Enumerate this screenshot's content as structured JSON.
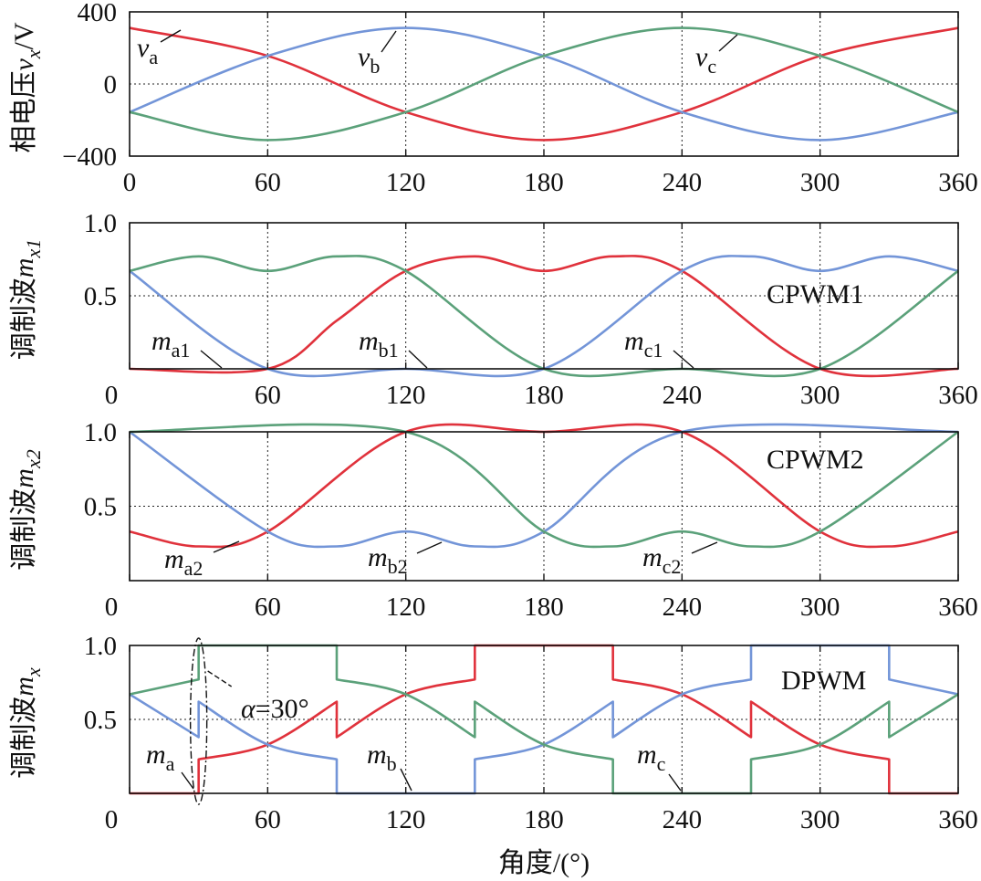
{
  "colors": {
    "a": "#e0323c",
    "b": "#7395d8",
    "c": "#5ba17a"
  },
  "xlabel": "角度/(°)",
  "chart_data": [
    {
      "type": "line",
      "ylabel": "相电压v_x/V",
      "xlim": [
        0,
        360
      ],
      "ylim": [
        -400,
        400
      ],
      "xticks": [
        "0",
        "60",
        "120",
        "180",
        "240",
        "300",
        "360"
      ],
      "yticks": [
        "400",
        "0",
        "−400"
      ],
      "grid": true,
      "series": [
        {
          "name": "v_a",
          "x": [
            0,
            60,
            120,
            180,
            240,
            300,
            360
          ],
          "y": [
            311,
            156,
            -156,
            -311,
            -156,
            156,
            311
          ]
        },
        {
          "name": "v_b",
          "x": [
            0,
            60,
            120,
            180,
            240,
            300,
            360
          ],
          "y": [
            -156,
            156,
            311,
            156,
            -156,
            -311,
            -156
          ]
        },
        {
          "name": "v_c",
          "x": [
            0,
            60,
            120,
            180,
            240,
            300,
            360
          ],
          "y": [
            -156,
            -311,
            -156,
            156,
            311,
            156,
            -156
          ]
        }
      ]
    },
    {
      "type": "line",
      "ylabel": "调制波m_x1",
      "label": "CPWM1",
      "xlim": [
        0,
        360
      ],
      "ylim": [
        0,
        1
      ],
      "xticks": [
        "0",
        "60",
        "120",
        "180",
        "240",
        "300",
        "360"
      ],
      "yticks": [
        "1.0",
        "0.5"
      ],
      "grid": true,
      "series": [
        {
          "name": "m_a1",
          "x": [
            0,
            60,
            90,
            120,
            150,
            180,
            210,
            240,
            300,
            360
          ],
          "y": [
            0,
            0,
            0.33,
            0.67,
            0.77,
            0.67,
            0.77,
            0.67,
            0,
            0
          ]
        },
        {
          "name": "m_b1",
          "x": [
            0,
            60,
            120,
            180,
            240,
            270,
            300,
            330,
            360
          ],
          "y": [
            0.67,
            0,
            0,
            0,
            0.67,
            0.77,
            0.67,
            0.77,
            0.67
          ]
        },
        {
          "name": "m_c1",
          "x": [
            0,
            30,
            60,
            90,
            120,
            180,
            240,
            300,
            360
          ],
          "y": [
            0.67,
            0.77,
            0.67,
            0.77,
            0.67,
            0,
            0,
            0,
            0.67
          ]
        }
      ]
    },
    {
      "type": "line",
      "ylabel": "调制波m_x2",
      "label": "CPWM2",
      "xlim": [
        0,
        360
      ],
      "ylim": [
        0,
        1
      ],
      "xticks": [
        "0",
        "60",
        "120",
        "180",
        "240",
        "300",
        "360"
      ],
      "yticks": [
        "1.0",
        "0.5"
      ],
      "grid": true,
      "series": [
        {
          "name": "m_a2",
          "x": [
            0,
            30,
            60,
            120,
            180,
            240,
            300,
            330,
            360
          ],
          "y": [
            0.33,
            0.23,
            0.33,
            1,
            1,
            1,
            0.33,
            0.23,
            0.33
          ]
        },
        {
          "name": "m_b2",
          "x": [
            0,
            60,
            90,
            120,
            150,
            180,
            240,
            360
          ],
          "y": [
            1,
            0.33,
            0.23,
            0.33,
            0.23,
            0.33,
            1,
            1
          ]
        },
        {
          "name": "m_c2",
          "x": [
            0,
            120,
            180,
            210,
            240,
            270,
            300,
            360
          ],
          "y": [
            1,
            1,
            0.33,
            0.23,
            0.33,
            0.23,
            0.33,
            1
          ]
        }
      ]
    },
    {
      "type": "line",
      "ylabel": "调制波m_x",
      "label": "DPWM",
      "annotation": "α=30°",
      "xlim": [
        0,
        360
      ],
      "ylim": [
        0,
        1
      ],
      "xticks": [
        "0",
        "60",
        "120",
        "180",
        "240",
        "300",
        "360"
      ],
      "yticks": [
        "1.0",
        "0.5"
      ],
      "grid": true,
      "series": [
        {
          "name": "m_a",
          "x": [
            0,
            30,
            30,
            60,
            90,
            90,
            120,
            150,
            150,
            210,
            210,
            240,
            270,
            270,
            300,
            330,
            330,
            360
          ],
          "y": [
            0,
            0,
            0.23,
            0.33,
            0.62,
            0.38,
            0.67,
            0.77,
            1,
            1,
            0.77,
            0.67,
            0.38,
            0.62,
            0.33,
            0.23,
            0,
            0
          ]
        },
        {
          "name": "m_b",
          "x": [
            0,
            30,
            30,
            60,
            90,
            90,
            150,
            150,
            180,
            210,
            210,
            240,
            270,
            270,
            330,
            330,
            360
          ],
          "y": [
            0.67,
            0.38,
            0.62,
            0.33,
            0.23,
            0,
            0,
            0.23,
            0.33,
            0.62,
            0.38,
            0.67,
            0.77,
            1,
            1,
            0.77,
            0.67
          ]
        },
        {
          "name": "m_c",
          "x": [
            0,
            30,
            30,
            90,
            90,
            120,
            150,
            150,
            180,
            210,
            210,
            270,
            270,
            300,
            330,
            330,
            360
          ],
          "y": [
            0.67,
            0.77,
            1,
            1,
            0.77,
            0.67,
            0.38,
            0.62,
            0.33,
            0.23,
            0,
            0,
            0.23,
            0.33,
            0.62,
            0.38,
            0.67
          ]
        }
      ]
    }
  ]
}
